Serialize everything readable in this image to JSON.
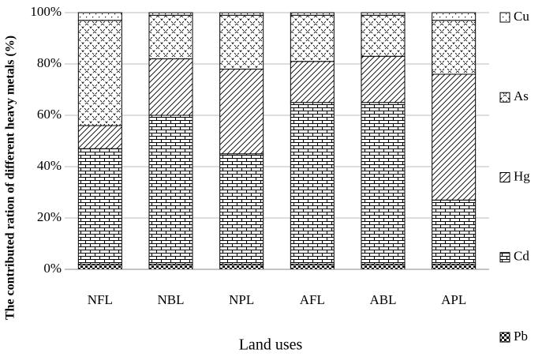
{
  "chart_data": {
    "type": "stacked_bar",
    "x_label": "Land uses",
    "y_label": "The contributed ration of different heavy metals  (%)",
    "categories": [
      "NFL",
      "NBL",
      "NPL",
      "AFL",
      "ABL",
      "APL"
    ],
    "series": [
      {
        "name": "Pb",
        "color": "#000000",
        "pattern": "checker",
        "values": [
          2,
          2,
          2,
          2,
          2,
          2
        ]
      },
      {
        "name": "Cd",
        "color": "#000000",
        "pattern": "brick",
        "values": [
          45,
          58,
          43,
          63,
          63,
          25
        ]
      },
      {
        "name": "Hg",
        "color": "#000000",
        "pattern": "diagonal",
        "values": [
          9,
          22,
          33,
          16,
          18,
          49
        ]
      },
      {
        "name": "As",
        "color": "#000000",
        "pattern": "crosshatch",
        "values": [
          41,
          17,
          21,
          18,
          16,
          21
        ]
      },
      {
        "name": "Cu",
        "color": "#000000",
        "pattern": "dots",
        "values": [
          3,
          1,
          1,
          1,
          1,
          3
        ]
      }
    ],
    "ylim": [
      0,
      100
    ],
    "yticks": [
      {
        "value": 0,
        "label": "0%"
      },
      {
        "value": 20,
        "label": "20%"
      },
      {
        "value": 40,
        "label": "40%"
      },
      {
        "value": 60,
        "label": "60%"
      },
      {
        "value": 80,
        "label": "80%"
      },
      {
        "value": 100,
        "label": "100%"
      }
    ],
    "grid": true,
    "legend": "right"
  }
}
